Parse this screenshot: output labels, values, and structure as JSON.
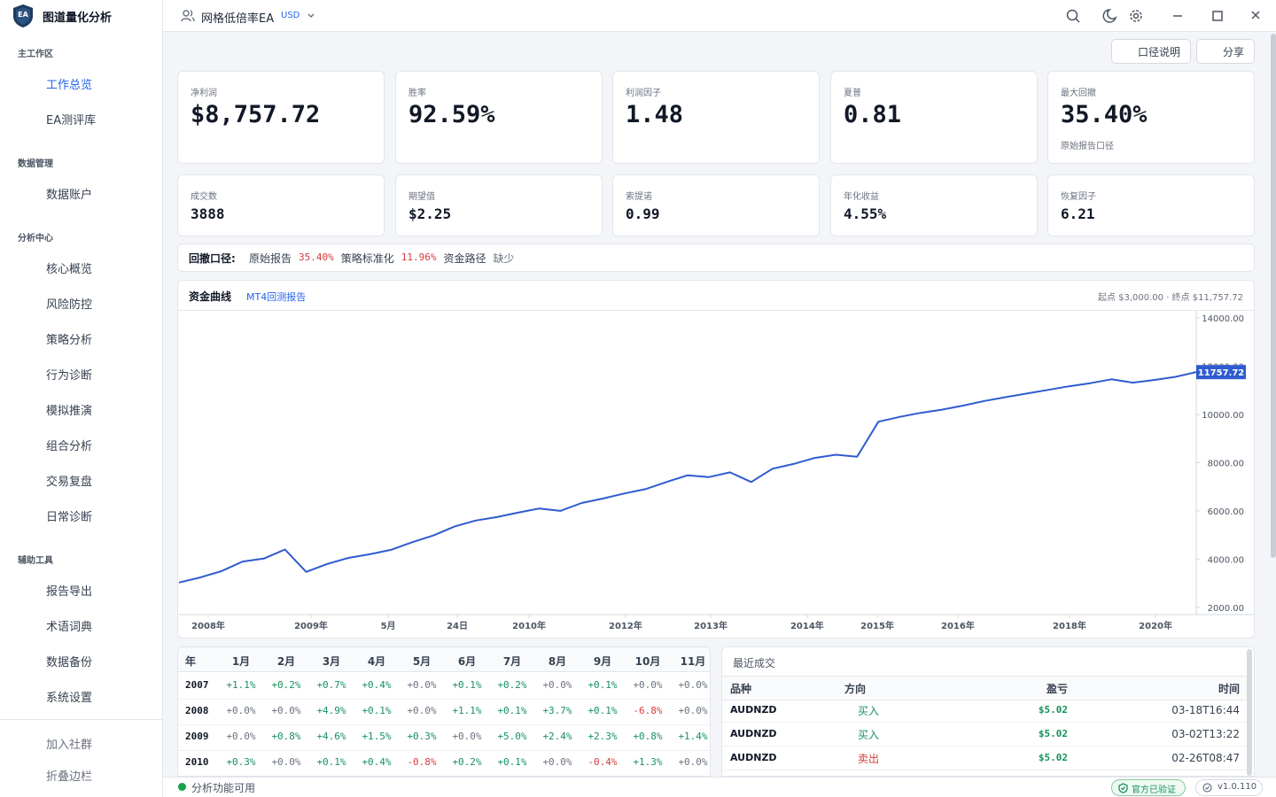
{
  "app": {
    "logo": "EA",
    "title": "图道量化分析"
  },
  "nav": [
    {
      "section": "主工作区",
      "items": [
        "工作总览",
        "EA测评库"
      ]
    },
    {
      "section": "数据管理",
      "items": [
        "数据账户"
      ]
    },
    {
      "section": "分析中心",
      "items": [
        "核心概览",
        "风险防控",
        "策略分析",
        "行为诊断",
        "模拟推演",
        "组合分析",
        "交易复盘",
        "日常诊断"
      ]
    },
    {
      "section": "辅助工具",
      "items": [
        "报告导出",
        "术语词典",
        "数据备份",
        "系统设置"
      ]
    }
  ],
  "nav_footer": [
    "加入社群",
    "折叠边栏"
  ],
  "header": {
    "account": "网格低倍率EA",
    "currency": "USD"
  },
  "toolbar": [
    "口径说明",
    "分享"
  ],
  "metrics": [
    {
      "label": "净利润",
      "value": "$8,757.72",
      "tone": "positive"
    },
    {
      "label": "胜率",
      "value": "92.59%"
    },
    {
      "label": "利润因子",
      "value": "1.48"
    },
    {
      "label": "夏普",
      "value": "0.81"
    },
    {
      "label": "最大回撤",
      "value": "35.40%",
      "tone": "negative",
      "note": "原始报告口径"
    },
    {
      "label": "成交数",
      "value": "3888"
    },
    {
      "label": "期望值",
      "value": "$2.25",
      "tone": "positive"
    },
    {
      "label": "索提诺",
      "value": "0.99"
    },
    {
      "label": "年化收益",
      "value": "4.55%"
    },
    {
      "label": "恢复因子",
      "value": "6.21"
    }
  ],
  "drawdown": {
    "title": "回撤口径:",
    "items": [
      {
        "label": "原始报告",
        "value": "35.40%",
        "tone": "negative"
      },
      {
        "label": "策略标准化",
        "value": "11.96%",
        "tone": "negative"
      },
      {
        "label": "资金路径",
        "value": "缺少"
      }
    ]
  },
  "chart_panel": {
    "tabs": [
      "资金曲线",
      "MT4回测报告"
    ],
    "summary": "起点 $3,000.00 · 终点 $11,757.72"
  },
  "chart_data": {
    "type": "line",
    "color": "#2f5bd0",
    "values": [
      3028,
      3240,
      3500,
      3900,
      4020,
      4400,
      3470,
      3800,
      4050,
      4200,
      4385,
      4700,
      4980,
      5350,
      5600,
      5743,
      5930,
      6100,
      6000,
      6330,
      6514,
      6720,
      6900,
      7200,
      7480,
      7400,
      7600,
      7200,
      7750,
      7950,
      8200,
      8330,
      8250,
      9700,
      9900,
      10070,
      10200,
      10370,
      10560,
      10720,
      10870,
      11020,
      11170,
      11300,
      11460,
      11320,
      11430,
      11560,
      11757.72
    ],
    "xlim": [
      0,
      48
    ],
    "xticks": [
      {
        "value": 1.38,
        "label": "2008年"
      },
      {
        "value": 6.23,
        "label": "2009年"
      },
      {
        "value": 9.87,
        "label": "5月"
      },
      {
        "value": 13.13,
        "label": "24日"
      },
      {
        "value": 16.52,
        "label": "2010年"
      },
      {
        "value": 21.07,
        "label": "2012年"
      },
      {
        "value": 25.09,
        "label": "2013年"
      },
      {
        "value": 29.64,
        "label": "2014年"
      },
      {
        "value": 32.95,
        "label": "2015年"
      },
      {
        "value": 36.75,
        "label": "2016年"
      },
      {
        "value": 42.02,
        "label": "2018年"
      },
      {
        "value": 46.08,
        "label": "2020年"
      }
    ],
    "ylim": [
      1700,
      14300
    ],
    "yticks": [
      {
        "value": 2000,
        "label": "2000.00"
      },
      {
        "value": 4000,
        "label": "4000.00"
      },
      {
        "value": 6000,
        "label": "6000.00"
      },
      {
        "value": 8000,
        "label": "8000.00"
      },
      {
        "value": 10000,
        "label": "10000.00"
      },
      {
        "value": 12000,
        "label": "12000.00"
      },
      {
        "value": 14000,
        "label": "14000.00"
      }
    ]
  },
  "monthly": {
    "columns": [
      "年",
      "1月",
      "2月",
      "3月",
      "4月",
      "5月",
      "6月",
      "7月",
      "8月",
      "9月",
      "10月",
      "11月"
    ],
    "rows": [
      [
        "2007",
        "+1.1%",
        "+0.2%",
        "+0.7%",
        "+0.4%",
        "+0.0%",
        "+0.1%",
        "+0.2%",
        "+0.0%",
        "+0.1%",
        "+0.0%",
        "+0.0%"
      ],
      [
        "2008",
        "+0.0%",
        "+0.0%",
        "+4.9%",
        "+0.1%",
        "+0.0%",
        "+1.1%",
        "+0.1%",
        "+3.7%",
        "+0.1%",
        "-6.8%",
        "+0.0%"
      ],
      [
        "2009",
        "+0.0%",
        "+0.8%",
        "+4.6%",
        "+1.5%",
        "+0.3%",
        "+0.0%",
        "+5.0%",
        "+2.4%",
        "+2.3%",
        "+0.8%",
        "+1.4%"
      ],
      [
        "2010",
        "+0.3%",
        "+0.0%",
        "+0.1%",
        "+0.4%",
        "-0.8%",
        "+0.2%",
        "+0.1%",
        "+0.0%",
        "-0.4%",
        "+1.3%",
        "+0.0%"
      ]
    ]
  },
  "trades": {
    "title": "最近成交",
    "columns": [
      "品种",
      "方向",
      "盈亏",
      "时间"
    ],
    "rows": [
      {
        "symbol": "AUDNZD",
        "side": "buy",
        "direction": "买入",
        "pnl": "$5.02",
        "time": "03-18T16:44"
      },
      {
        "symbol": "AUDNZD",
        "side": "buy",
        "direction": "买入",
        "pnl": "$5.02",
        "time": "03-02T13:22"
      },
      {
        "symbol": "AUDNZD",
        "side": "sell",
        "direction": "卖出",
        "pnl": "$5.02",
        "time": "02-26T08:47"
      }
    ]
  },
  "status": {
    "text": "分析功能可用",
    "verified": "官方已验证",
    "version": "v1.0.110"
  }
}
